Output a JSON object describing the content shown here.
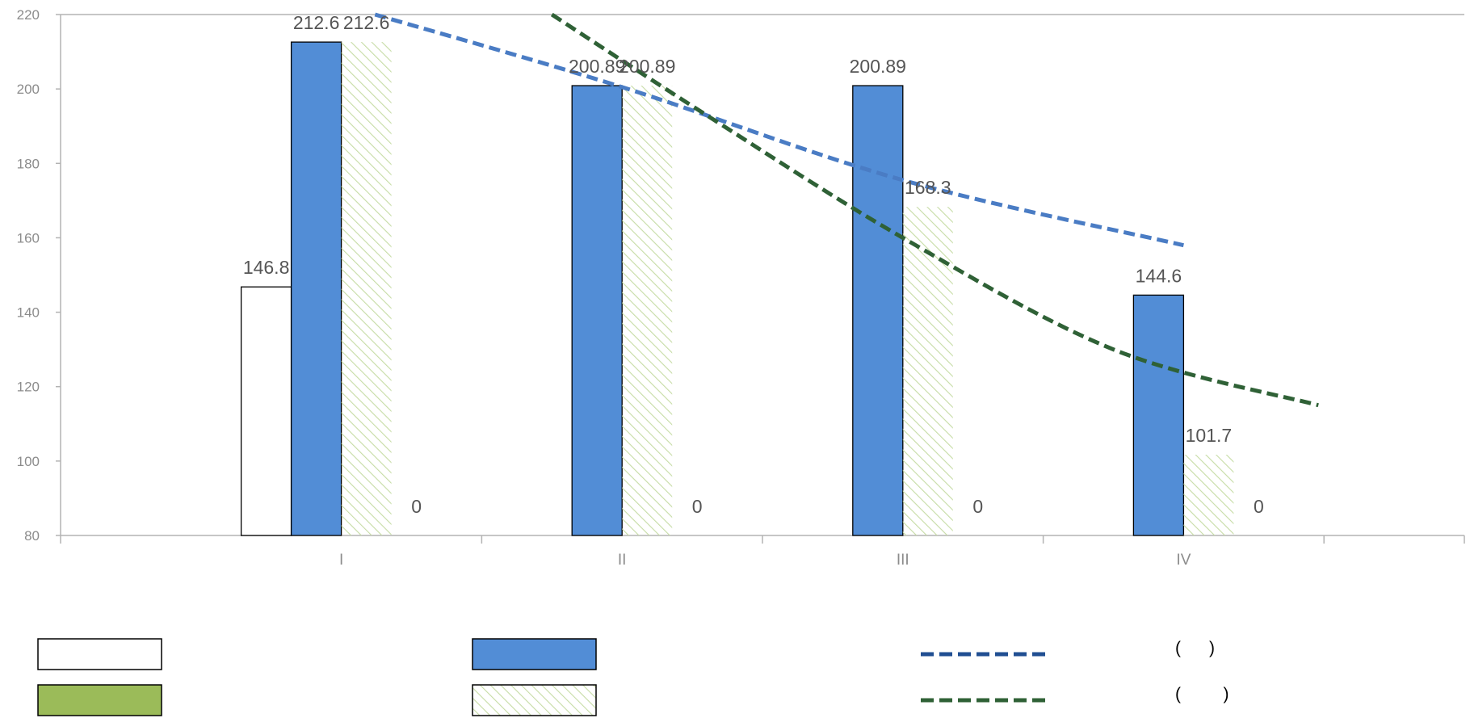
{
  "chart_data": {
    "type": "bar",
    "categories": [
      "I",
      "II",
      "III",
      "IV"
    ],
    "ylim": [
      80,
      220
    ],
    "yticks": [
      80,
      100,
      120,
      140,
      160,
      180,
      200,
      220
    ],
    "grid": false,
    "legend_position": "bottom",
    "series": [
      {
        "kind": "bar",
        "style": "outline",
        "values": [
          146.8,
          null,
          null,
          null
        ],
        "labels": [
          "146.8",
          "",
          "",
          ""
        ]
      },
      {
        "kind": "bar",
        "style": "blue",
        "values": [
          212.6,
          200.89,
          200.89,
          144.6
        ],
        "labels": [
          "212.6",
          "200.89",
          "200.89",
          "144.6"
        ]
      },
      {
        "kind": "bar",
        "style": "green-hatch",
        "values": [
          212.6,
          200.89,
          168.3,
          101.7
        ],
        "labels": [
          "212.6",
          "200.89",
          "168.3",
          "101.7"
        ]
      },
      {
        "kind": "bar",
        "style": "solid-green",
        "values": [
          0,
          0,
          0,
          0
        ],
        "labels": [
          "0",
          "0",
          "0",
          "0"
        ]
      }
    ],
    "trendlines": [
      {
        "style": "blue-dashed",
        "points": [
          [
            1.12,
            220
          ],
          [
            2,
            200.5
          ],
          [
            3,
            175.5
          ],
          [
            4,
            158
          ]
        ]
      },
      {
        "style": "green-dashed",
        "points": [
          [
            1.75,
            220
          ],
          [
            2.3,
            193
          ],
          [
            3,
            160
          ],
          [
            3.75,
            130
          ],
          [
            4.48,
            115
          ]
        ]
      }
    ],
    "legend": [
      {
        "swatch": "outline-box",
        "text": ""
      },
      {
        "swatch": "blue-box",
        "text": ""
      },
      {
        "swatch": "blue-dash",
        "text": "(      )"
      },
      {
        "swatch": "green-box",
        "text": ""
      },
      {
        "swatch": "hatch-box",
        "text": ""
      },
      {
        "swatch": "green-dash",
        "text": "(         )"
      }
    ]
  },
  "colors": {
    "blue_bar": "#528dd6",
    "blue_line": "#4a7cc4",
    "green_line": "#2f6136",
    "green_fill": "#9bbb59",
    "hatch": "#c6dca5",
    "axis": "#b3b3b3",
    "legend_blue_dash": "#214f92"
  }
}
